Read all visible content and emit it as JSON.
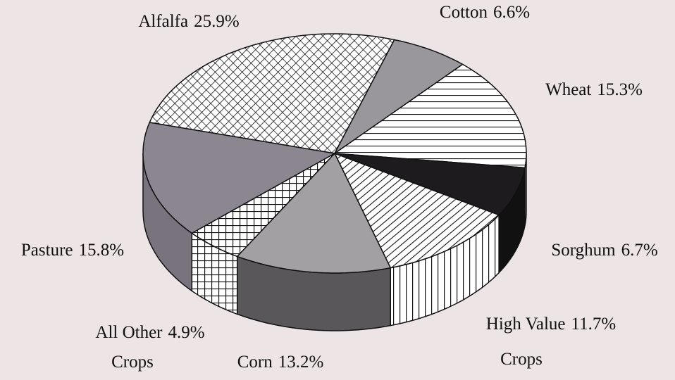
{
  "chart_data": {
    "type": "pie3d",
    "categories": [
      [
        "Alfalfa"
      ],
      [
        "Cotton"
      ],
      [
        "Wheat"
      ],
      [
        "Sorghum"
      ],
      [
        "High Value",
        "Crops"
      ],
      [
        "Corn"
      ],
      [
        "All Other",
        "Crops"
      ],
      [
        "Pasture"
      ]
    ],
    "values": [
      25.9,
      6.6,
      15.3,
      6.7,
      11.7,
      13.2,
      4.9,
      15.8
    ],
    "value_labels": [
      "25.9%",
      "6.6%",
      "15.3%",
      "6.7%",
      "11.7%",
      "13.2%",
      "4.9%",
      "15.8%"
    ]
  }
}
